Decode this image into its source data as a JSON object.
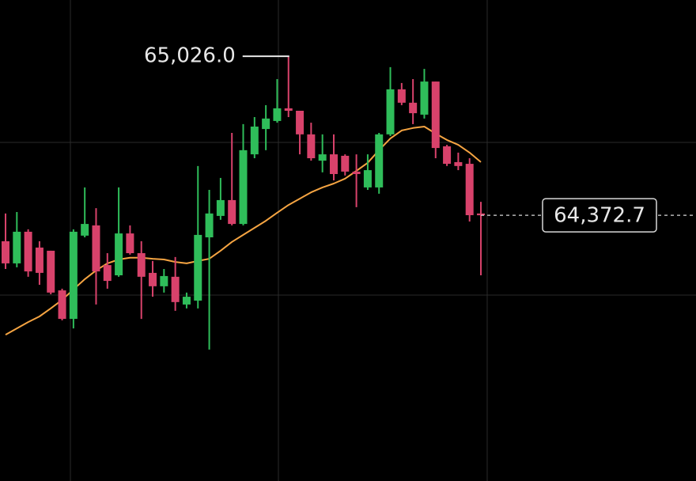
{
  "chart_data": {
    "type": "candlestick",
    "up_color": "#2fbd5a",
    "down_color": "#d8426b",
    "ylim": [
      63281,
      65257
    ],
    "open": [
      64266,
      64175,
      64305,
      64240,
      64227,
      64064,
      63947,
      64289,
      64331,
      64168,
      64126,
      64298,
      64217,
      64136,
      64081,
      64120,
      64006,
      64022,
      64282,
      64370,
      64435,
      64337,
      64623,
      64727,
      64760,
      64812,
      64802,
      64705,
      64597,
      64623,
      64617,
      64552,
      64487,
      64487,
      64705,
      64890,
      64835,
      64786,
      64922,
      64656,
      64591,
      64584,
      64380
    ],
    "high": [
      64380,
      64386,
      64315,
      64266,
      64227,
      64071,
      64315,
      64487,
      64402,
      64217,
      64487,
      64331,
      64266,
      64185,
      64152,
      64201,
      64055,
      64575,
      64477,
      64526,
      64711,
      64747,
      64776,
      64825,
      64932,
      65026.0,
      64802,
      64753,
      64705,
      64705,
      64623,
      64623,
      64623,
      64711,
      64981,
      64916,
      64932,
      64974,
      64922,
      64662,
      64630,
      64607,
      64428
    ],
    "low": [
      64152,
      64159,
      64120,
      64087,
      64048,
      63941,
      63908,
      64282,
      64006,
      64071,
      64120,
      64211,
      63947,
      64038,
      64055,
      63980,
      63990,
      63990,
      63821,
      64354,
      64331,
      64331,
      64607,
      64640,
      64753,
      64776,
      64623,
      64597,
      64549,
      64516,
      64536,
      64406,
      64477,
      64461,
      64698,
      64825,
      64747,
      64770,
      64607,
      64575,
      64558,
      64347,
      64126
    ],
    "close": [
      64175,
      64305,
      64142,
      64136,
      64055,
      63947,
      64305,
      64337,
      64142,
      64103,
      64298,
      64217,
      64120,
      64081,
      64123,
      64016,
      64038,
      64292,
      64380,
      64435,
      64337,
      64640,
      64737,
      64770,
      64812,
      64802,
      64705,
      64607,
      64623,
      64542,
      64552,
      64542,
      64558,
      64705,
      64890,
      64835,
      64792,
      64922,
      64649,
      64584,
      64575,
      64373,
      64372.7
    ],
    "series": [
      {
        "color": "#f5a442",
        "values": [
          63882,
          63908,
          63934,
          63957,
          63990,
          64025,
          64068,
          64110,
          64146,
          64175,
          64191,
          64198,
          64198,
          64194,
          64191,
          64181,
          64175,
          64185,
          64194,
          64227,
          64263,
          64292,
          64321,
          64350,
          64383,
          64415,
          64441,
          64467,
          64487,
          64503,
          64523,
          64555,
          64588,
          64640,
          64688,
          64721,
          64731,
          64737,
          64708,
          64682,
          64662,
          64630,
          64591
        ]
      }
    ],
    "high_annotation": {
      "value": 65026.0,
      "label": "65,026.0"
    },
    "last_price": {
      "value": 64372.7,
      "label": "64,372.7"
    }
  }
}
